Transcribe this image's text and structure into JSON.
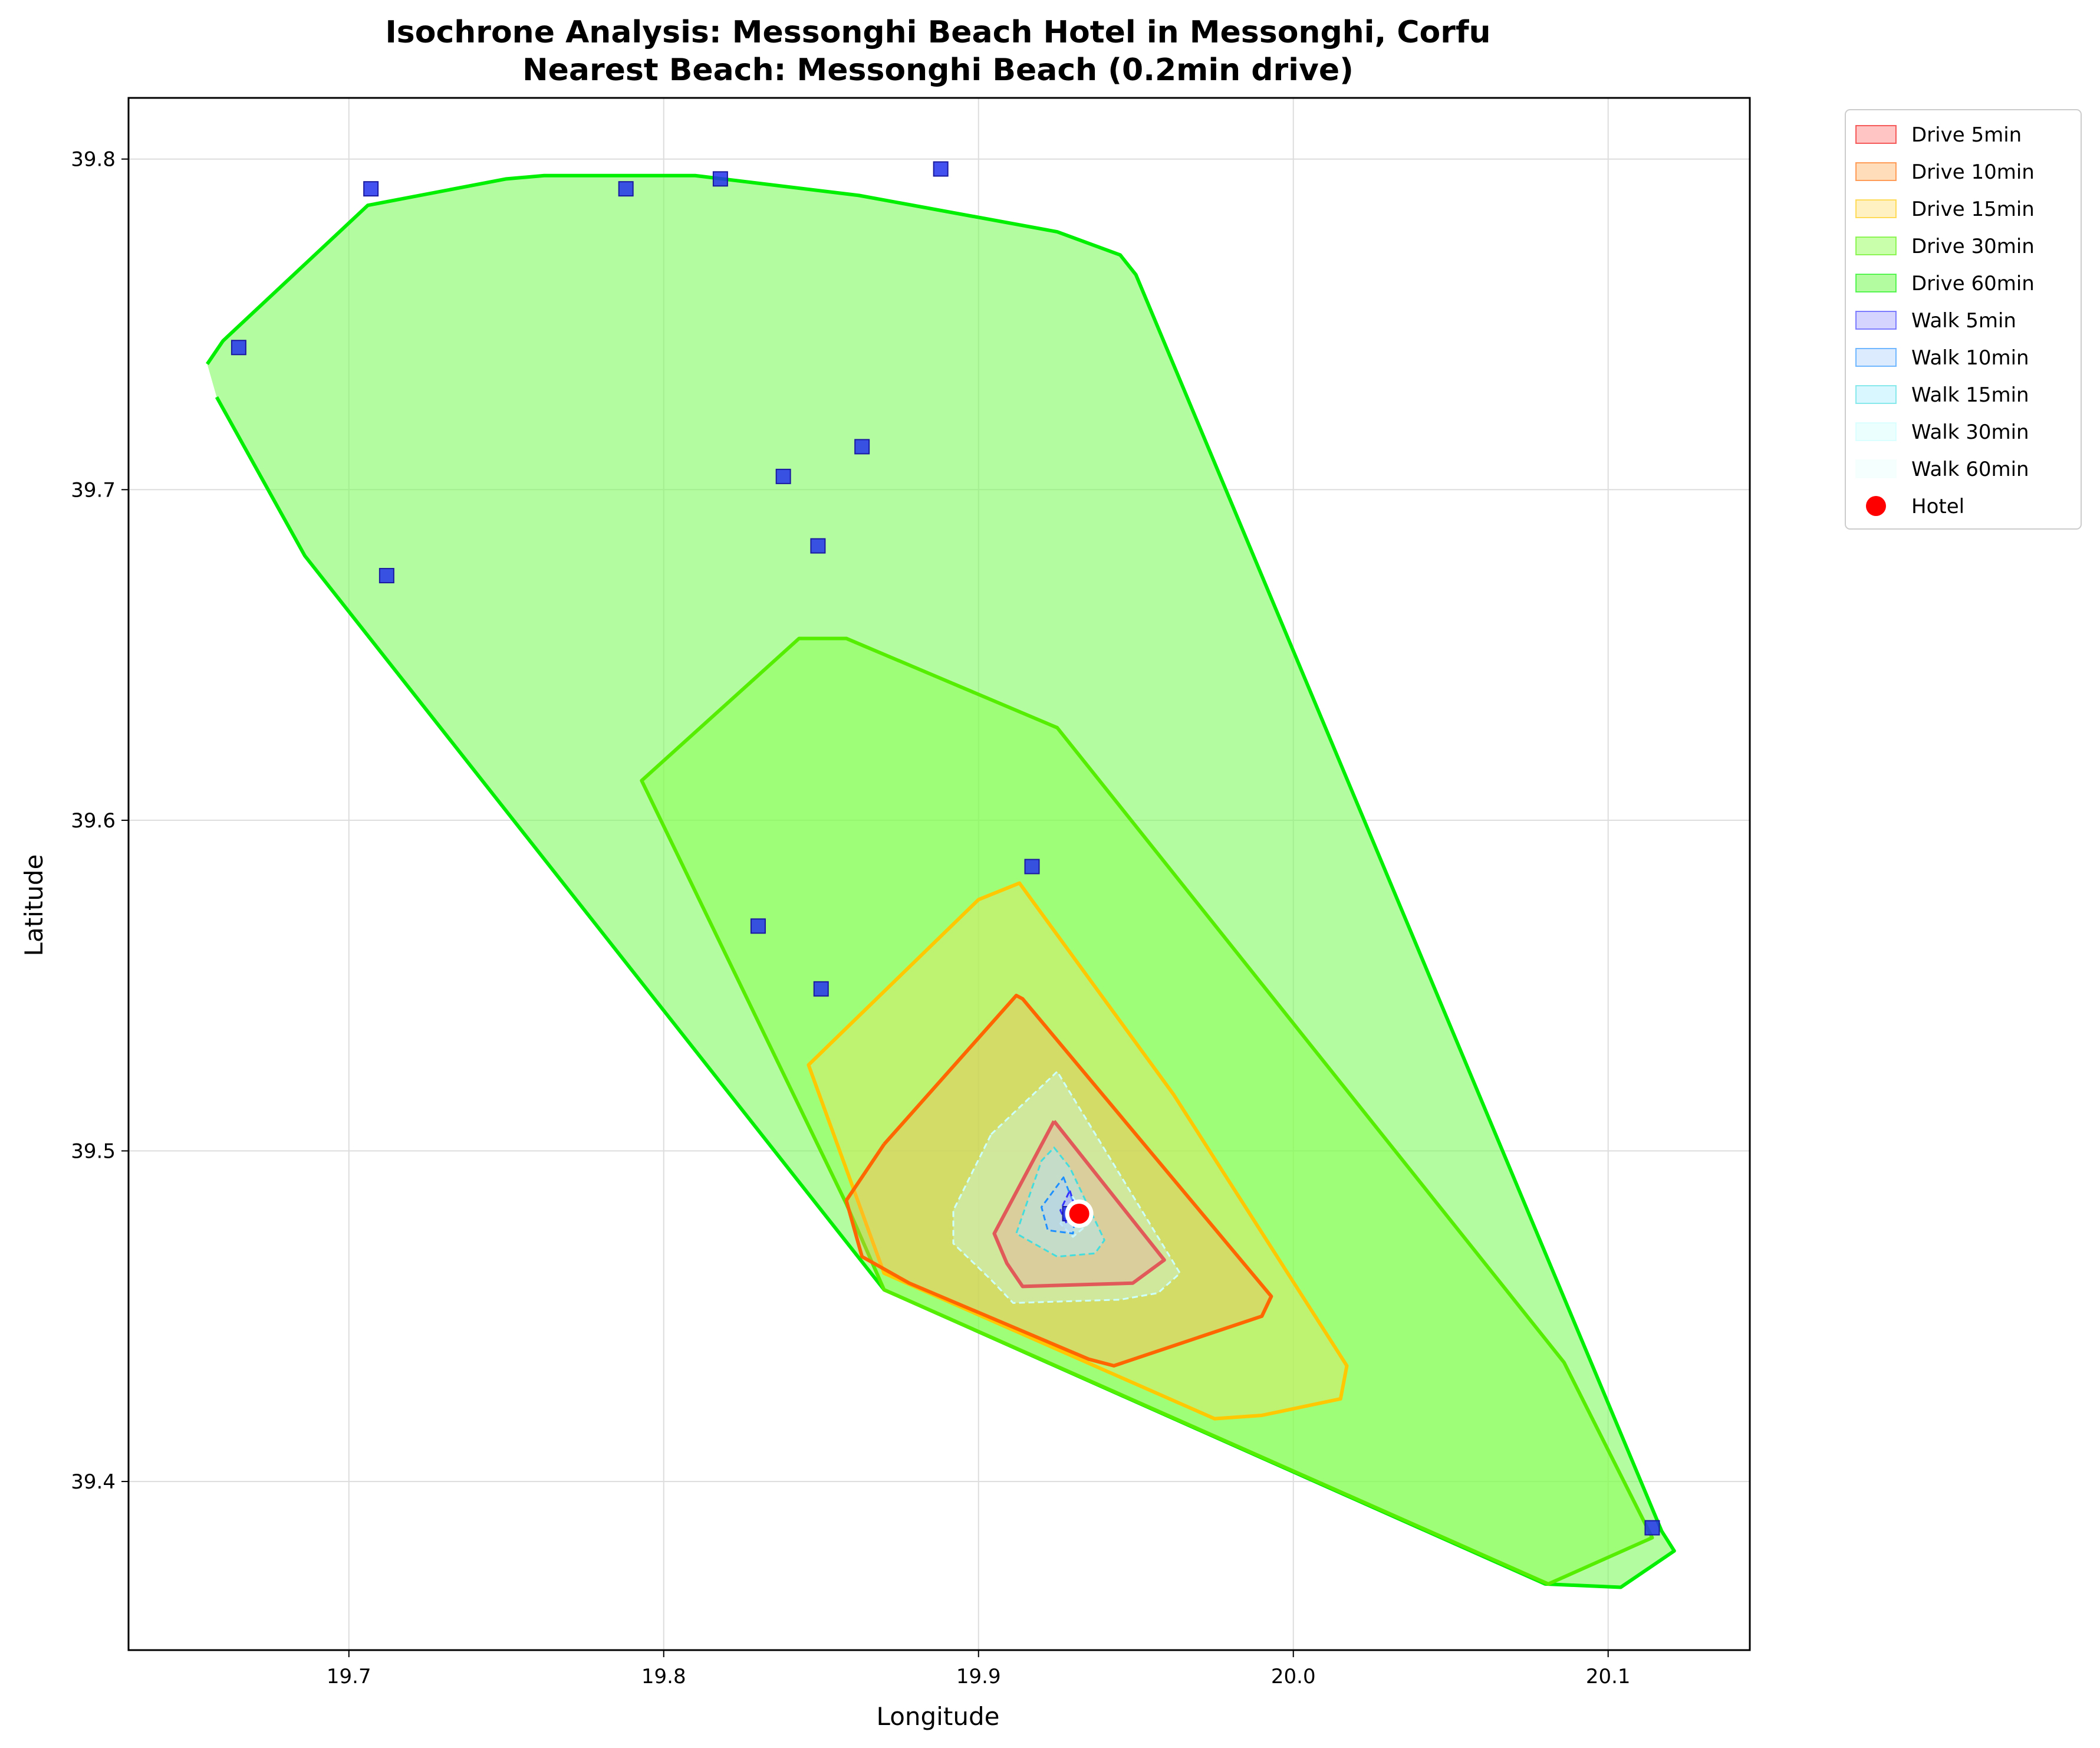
{
  "chart_data": {
    "type": "area",
    "title": "Isochrone Analysis: Messonghi Beach Hotel in Messonghi, Corfu",
    "subtitle": "Nearest Beach: Messonghi Beach (0.2min drive)",
    "xlabel": "Longitude",
    "ylabel": "Latitude",
    "xlim": [
      19.63,
      20.145
    ],
    "ylim": [
      39.349,
      39.8185
    ],
    "xticks": [
      19.7,
      19.8,
      19.9,
      20.0,
      20.1
    ],
    "xtick_labels": [
      "19.7",
      "19.8",
      "19.9",
      "20.0",
      "20.1"
    ],
    "yticks": [
      39.4,
      39.5,
      39.6,
      39.7,
      39.8
    ],
    "ytick_labels": [
      "39.4",
      "39.5",
      "39.6",
      "39.7",
      "39.8"
    ],
    "grid": true,
    "legend_placement": "outside-upper-right",
    "series": [
      {
        "name": "Drive 60min",
        "mode": "drive",
        "fill": "#7cfc5c",
        "fill_opacity": 0.58,
        "line": "#00ee00",
        "points": [
          [
            19.655,
            39.738
          ],
          [
            19.66,
            39.745
          ],
          [
            19.706,
            39.786
          ],
          [
            19.75,
            39.794
          ],
          [
            19.762,
            39.795
          ],
          [
            19.81,
            39.795
          ],
          [
            19.862,
            39.789
          ],
          [
            19.925,
            39.778
          ],
          [
            19.945,
            39.771
          ],
          [
            19.95,
            39.765
          ],
          [
            20.117,
            39.385
          ],
          [
            20.121,
            39.379
          ],
          [
            20.104,
            39.368
          ],
          [
            20.08,
            39.369
          ],
          [
            19.87,
            39.458
          ],
          [
            19.686,
            39.68
          ],
          [
            19.658,
            39.728
          ]
        ],
        "outline_open": true
      },
      {
        "name": "Drive 30min",
        "mode": "drive",
        "fill": "#88ff44",
        "fill_opacity": 0.45,
        "line": "#55ee00",
        "points": [
          [
            19.793,
            39.612
          ],
          [
            19.843,
            39.655
          ],
          [
            19.858,
            39.655
          ],
          [
            19.925,
            39.628
          ],
          [
            20.086,
            39.436
          ],
          [
            20.114,
            39.383
          ],
          [
            20.081,
            39.369
          ],
          [
            19.87,
            39.458
          ],
          [
            19.858,
            39.484
          ],
          [
            19.793,
            39.612
          ]
        ]
      },
      {
        "name": "Drive 15min",
        "mode": "drive",
        "fill": "#ffdd66",
        "fill_opacity": 0.32,
        "line": "#ffc800",
        "points": [
          [
            19.846,
            39.526
          ],
          [
            19.9,
            39.576
          ],
          [
            19.913,
            39.581
          ],
          [
            19.962,
            39.517
          ],
          [
            20.017,
            39.435
          ],
          [
            20.015,
            39.425
          ],
          [
            19.99,
            39.42
          ],
          [
            19.975,
            39.419
          ],
          [
            19.87,
            39.463
          ],
          [
            19.846,
            39.526
          ]
        ]
      },
      {
        "name": "Drive 10min",
        "mode": "drive",
        "fill": "#ffaa55",
        "fill_opacity": 0.32,
        "line": "#ff6600",
        "points": [
          [
            19.87,
            39.502
          ],
          [
            19.858,
            39.485
          ],
          [
            19.863,
            39.468
          ],
          [
            19.878,
            39.46
          ],
          [
            19.935,
            39.437
          ],
          [
            19.943,
            39.435
          ],
          [
            19.99,
            39.45
          ],
          [
            19.993,
            39.456
          ],
          [
            19.914,
            39.546
          ],
          [
            19.912,
            39.547
          ],
          [
            19.87,
            39.502
          ]
        ],
        "outline_open": true
      },
      {
        "name": "Drive 5min",
        "mode": "drive",
        "fill": "#ff6b6b",
        "fill_opacity": 0.35,
        "line": "#ee0000",
        "points": [
          [
            19.924,
            39.509
          ],
          [
            19.905,
            39.475
          ],
          [
            19.909,
            39.466
          ],
          [
            19.914,
            39.459
          ],
          [
            19.949,
            39.46
          ],
          [
            19.959,
            39.467
          ],
          [
            19.924,
            39.509
          ]
        ],
        "outline_open": true
      },
      {
        "name": "Walk 60min",
        "mode": "walk",
        "fill": "#e6fffa",
        "fill_opacity": 0.35,
        "line": "#f0fffb",
        "points": [
          [
            19.93,
            39.486
          ],
          [
            19.935,
            39.478
          ],
          [
            19.93,
            39.474
          ],
          [
            19.926,
            39.478
          ],
          [
            19.93,
            39.486
          ]
        ]
      },
      {
        "name": "Walk 30min",
        "mode": "walk",
        "fill": "#ccffff",
        "fill_opacity": 0.35,
        "line": "#ccffff",
        "points": [
          [
            19.904,
            39.505
          ],
          [
            19.925,
            39.524
          ],
          [
            19.964,
            39.463
          ],
          [
            19.957,
            39.457
          ],
          [
            19.945,
            39.455
          ],
          [
            19.911,
            39.454
          ],
          [
            19.904,
            39.461
          ],
          [
            19.892,
            39.472
          ],
          [
            19.892,
            39.482
          ],
          [
            19.904,
            39.505
          ]
        ]
      },
      {
        "name": "Walk 15min",
        "mode": "walk",
        "fill": "#aaeeff",
        "fill_opacity": 0.45,
        "line": "#44dddd",
        "points": [
          [
            19.924,
            39.501
          ],
          [
            19.929,
            39.495
          ],
          [
            19.94,
            39.473
          ],
          [
            19.937,
            39.469
          ],
          [
            19.925,
            39.468
          ],
          [
            19.912,
            39.475
          ],
          [
            19.92,
            39.497
          ],
          [
            19.924,
            39.501
          ]
        ]
      },
      {
        "name": "Walk 10min",
        "mode": "walk",
        "fill": "#aaccff",
        "fill_opacity": 0.4,
        "line": "#1e90ff",
        "points": [
          [
            19.927,
            39.492
          ],
          [
            19.931,
            39.482
          ],
          [
            19.93,
            39.475
          ],
          [
            19.922,
            39.476
          ],
          [
            19.92,
            39.483
          ],
          [
            19.927,
            39.492
          ]
        ]
      },
      {
        "name": "Walk 5min",
        "mode": "walk",
        "fill": "#aaaaff",
        "fill_opacity": 0.5,
        "line": "#3333ff",
        "points": [
          [
            19.929,
            39.488
          ],
          [
            19.931,
            39.482
          ],
          [
            19.928,
            39.478
          ],
          [
            19.926,
            39.482
          ],
          [
            19.929,
            39.488
          ]
        ]
      }
    ],
    "beaches": [
      [
        19.665,
        39.743
      ],
      [
        19.707,
        39.791
      ],
      [
        19.712,
        39.674
      ],
      [
        19.788,
        39.791
      ],
      [
        19.818,
        39.794
      ],
      [
        19.888,
        39.797
      ],
      [
        19.838,
        39.704
      ],
      [
        19.863,
        39.713
      ],
      [
        19.849,
        39.683
      ],
      [
        19.917,
        39.586
      ],
      [
        19.83,
        39.568
      ],
      [
        19.85,
        39.549
      ],
      [
        20.114,
        39.386
      ],
      [
        19.929,
        39.481
      ]
    ],
    "beach_color": "#2233ee",
    "hotel": {
      "name": "Hotel",
      "lon": 19.932,
      "lat": 39.481,
      "color": "#ff0000"
    },
    "legend": [
      "Drive 5min",
      "Drive 10min",
      "Drive 15min",
      "Drive 30min",
      "Drive 60min",
      "Walk 5min",
      "Walk 10min",
      "Walk 15min",
      "Walk 30min",
      "Walk 60min",
      "Hotel"
    ]
  }
}
